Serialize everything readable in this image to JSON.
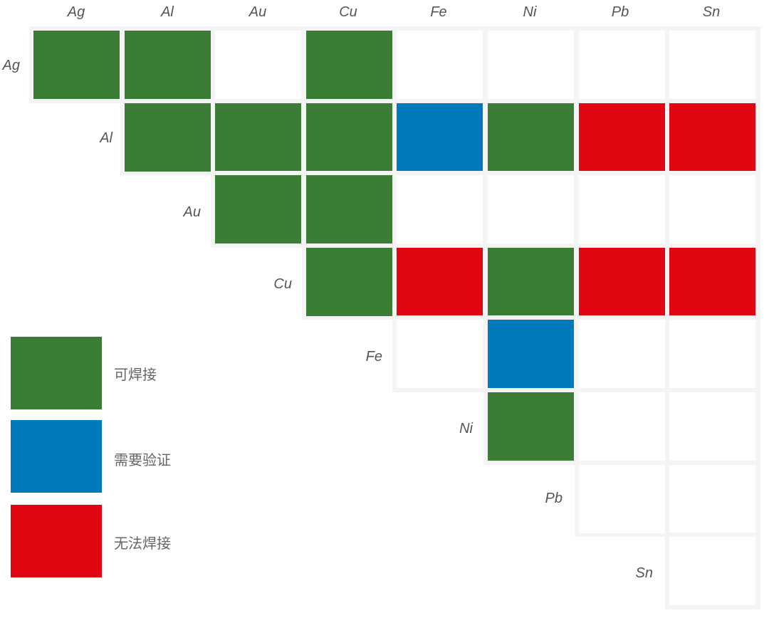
{
  "chart_data": {
    "type": "heatmap",
    "title": "",
    "columns": [
      "Ag",
      "Al",
      "Au",
      "Cu",
      "Fe",
      "Ni",
      "Pb",
      "Sn"
    ],
    "rows": [
      "Ag",
      "Al",
      "Au",
      "Cu",
      "Fe",
      "Ni",
      "Pb",
      "Sn"
    ],
    "matrix_note": "upper-triangular compatibility matrix; null = blank cell",
    "values": [
      [
        "weldable",
        "weldable",
        null,
        "weldable",
        null,
        null,
        null,
        null
      ],
      [
        null,
        "weldable",
        "weldable",
        "weldable",
        "verify",
        "weldable",
        "not_weldable",
        "not_weldable"
      ],
      [
        null,
        null,
        "weldable",
        "weldable",
        null,
        null,
        null,
        null
      ],
      [
        null,
        null,
        null,
        "weldable",
        "not_weldable",
        "weldable",
        "not_weldable",
        "not_weldable"
      ],
      [
        null,
        null,
        null,
        null,
        null,
        "verify",
        null,
        null
      ],
      [
        null,
        null,
        null,
        null,
        null,
        "weldable",
        null,
        null
      ],
      [
        null,
        null,
        null,
        null,
        null,
        null,
        null,
        null
      ],
      [
        null,
        null,
        null,
        null,
        null,
        null,
        null,
        null
      ]
    ],
    "legend": [
      {
        "key": "weldable",
        "label": "可焊接",
        "color": "#3c7d36"
      },
      {
        "key": "verify",
        "label": "需要验证",
        "color": "#0079bd"
      },
      {
        "key": "not_weldable",
        "label": "无法焊接",
        "color": "#e20613"
      }
    ],
    "legend_position": "bottom-left"
  },
  "labels": {
    "columns": [
      "Ag",
      "Al",
      "Au",
      "Cu",
      "Fe",
      "Ni",
      "Pb",
      "Sn"
    ],
    "rows": [
      "Ag",
      "Al",
      "Au",
      "Cu",
      "Fe",
      "Ni",
      "Pb",
      "Sn"
    ]
  },
  "legend": {
    "weldable": "可焊接",
    "verify": "需要验证",
    "not_weldable": "无法焊接"
  },
  "colors": {
    "weldable": "#3c7d36",
    "verify": "#0079bd",
    "not_weldable": "#e20613",
    "empty": "#ffffff",
    "gutter": "#f4f4f4"
  }
}
